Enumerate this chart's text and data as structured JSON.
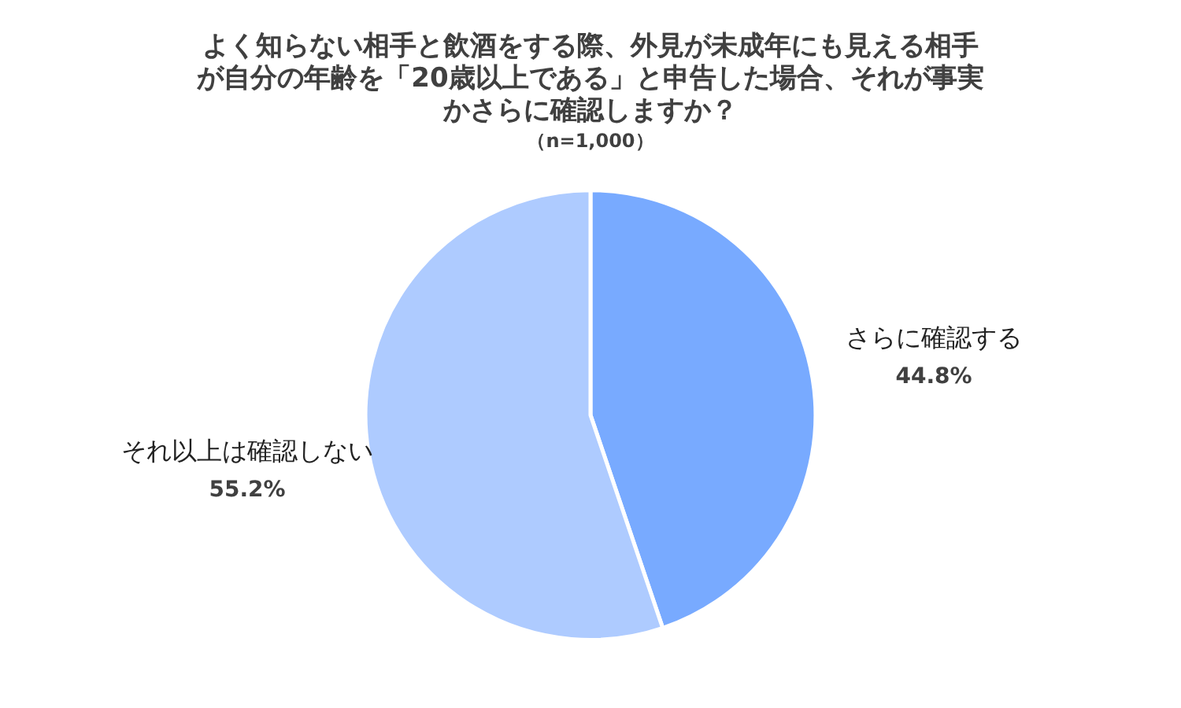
{
  "chart_data": {
    "type": "pie",
    "title": "よく知らない相手と飲酒をする際、外見が未成年にも見える相手が自分の年齢を「20歳以上である」と申告した場合、それが事実かさらに確認しますか？",
    "subtitle": "（n=1,000）",
    "categories": [
      "さらに確認する",
      "それ以上は確認しない"
    ],
    "values": [
      44.8,
      55.2
    ],
    "colors": [
      "#78aaff",
      "#aecbff"
    ],
    "value_labels": [
      "44.8%",
      "55.2%"
    ],
    "legend": false
  }
}
